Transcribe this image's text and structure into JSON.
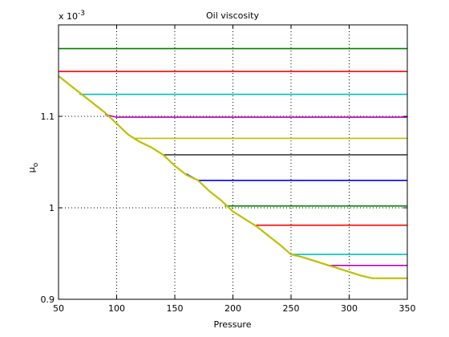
{
  "chart_data": {
    "type": "line",
    "title": "Oil viscosity",
    "xlabel": "Pressure",
    "ylabel": "μo",
    "ylabel_main": "μ",
    "ylabel_sub": "o",
    "y_multiplier": "x 10",
    "y_multiplier_exp": "-3",
    "xlim": [
      50,
      350
    ],
    "ylim": [
      0.9,
      1.2
    ],
    "grid": true,
    "x_ticks": [
      50,
      100,
      150,
      200,
      250,
      300,
      350
    ],
    "x_tick_labels": [
      "50",
      "100",
      "150",
      "200",
      "250",
      "300",
      "350"
    ],
    "y_ticks": [
      0.9,
      1.0,
      1.1
    ],
    "y_tick_labels": [
      "0.9",
      "1",
      "1.1"
    ],
    "series": [
      {
        "color": "#007f00",
        "x": [
          50,
          350
        ],
        "y": [
          1.174,
          1.174
        ]
      },
      {
        "color": "#ff0000",
        "x": [
          50,
          350
        ],
        "y": [
          1.149,
          1.149
        ]
      },
      {
        "color": "#00bfbf",
        "x": [
          68,
          350
        ],
        "y": [
          1.124,
          1.124
        ]
      },
      {
        "color": "#bf00bf",
        "x": [
          90,
          100,
          350
        ],
        "y": [
          1.102,
          1.099,
          1.099
        ]
      },
      {
        "color": "#bfbf00",
        "x": [
          115,
          350
        ],
        "y": [
          1.076,
          1.076
        ]
      },
      {
        "color": "#3f3f3f",
        "x": [
          140,
          350
        ],
        "y": [
          1.058,
          1.058
        ]
      },
      {
        "color": "#0000ff",
        "x": [
          160,
          170,
          350
        ],
        "y": [
          1.037,
          1.03,
          1.03
        ]
      },
      {
        "color": "#007f00",
        "x": [
          193,
          350
        ],
        "y": [
          1.002,
          1.002
        ]
      },
      {
        "color": "#ff0000",
        "x": [
          220,
          350
        ],
        "y": [
          0.981,
          0.981
        ]
      },
      {
        "color": "#00bfbf",
        "x": [
          251,
          350
        ],
        "y": [
          0.949,
          0.949
        ]
      },
      {
        "color": "#bf00bf",
        "x": [
          281,
          350
        ],
        "y": [
          0.937,
          0.937
        ]
      },
      {
        "color": "#bfbf00",
        "x": [
          50,
          60,
          70,
          80,
          90,
          100,
          110,
          120,
          130,
          140,
          150,
          160,
          170,
          180,
          190,
          200,
          210,
          220,
          230,
          240,
          250,
          260,
          270,
          280,
          290,
          300,
          310,
          320,
          330,
          340,
          350
        ],
        "y": [
          1.144,
          1.134,
          1.124,
          1.114,
          1.104,
          1.092,
          1.08,
          1.072,
          1.066,
          1.058,
          1.046,
          1.036,
          1.03,
          1.018,
          1.008,
          0.996,
          0.988,
          0.98,
          0.97,
          0.96,
          0.949,
          0.946,
          0.942,
          0.938,
          0.934,
          0.93,
          0.926,
          0.923,
          0.923,
          0.923,
          0.923
        ]
      }
    ]
  }
}
